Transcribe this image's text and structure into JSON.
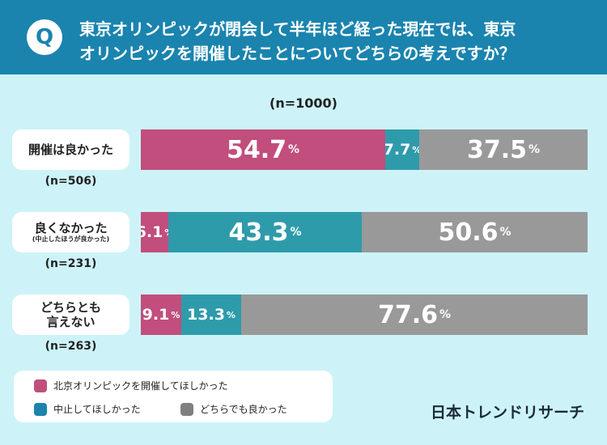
{
  "header": {
    "q_mark": "Q",
    "question_line1": "東京オリンピックが閉会して半年ほど経った現在では、東京",
    "question_line2": "オリンピックを開催したことについてどちらの考えですか？"
  },
  "chart_data": {
    "type": "bar",
    "orientation": "horizontal-stacked-100",
    "title": "東京オリンピックが閉会して半年ほど経った現在では、東京オリンピックを開催したことについてどちらの考えですか？",
    "total_n": "(n=1000)",
    "unit": "%",
    "colors": [
      "#c14e7c",
      "#2e9bab",
      "#999999"
    ],
    "categories": [
      {
        "label": "開催は良かった",
        "sublabel": "",
        "n": "(n=506)"
      },
      {
        "label": "良くなかった",
        "sublabel": "(中止したほうが良かった)",
        "n": "(n=231)"
      },
      {
        "label": "どちらとも\n言えない",
        "sublabel": "",
        "n": "(n=263)"
      }
    ],
    "series": [
      {
        "name": "北京オリンピックを開催してほしかった",
        "values": [
          54.7,
          6.1,
          9.1
        ]
      },
      {
        "name": "中止してほしかった",
        "values": [
          7.7,
          43.3,
          13.3
        ]
      },
      {
        "name": "どちらでも良かった",
        "values": [
          37.5,
          50.6,
          77.6
        ]
      }
    ]
  },
  "legend": {
    "items": [
      {
        "label": "北京オリンピックを開催してほしかった",
        "color": "#c14e7c"
      },
      {
        "label": "中止してほしかった",
        "color": "#1a84ae"
      },
      {
        "label": "どちらでも良かった",
        "color": "#808080"
      }
    ]
  },
  "brand": "日本トレンドリサーチ"
}
